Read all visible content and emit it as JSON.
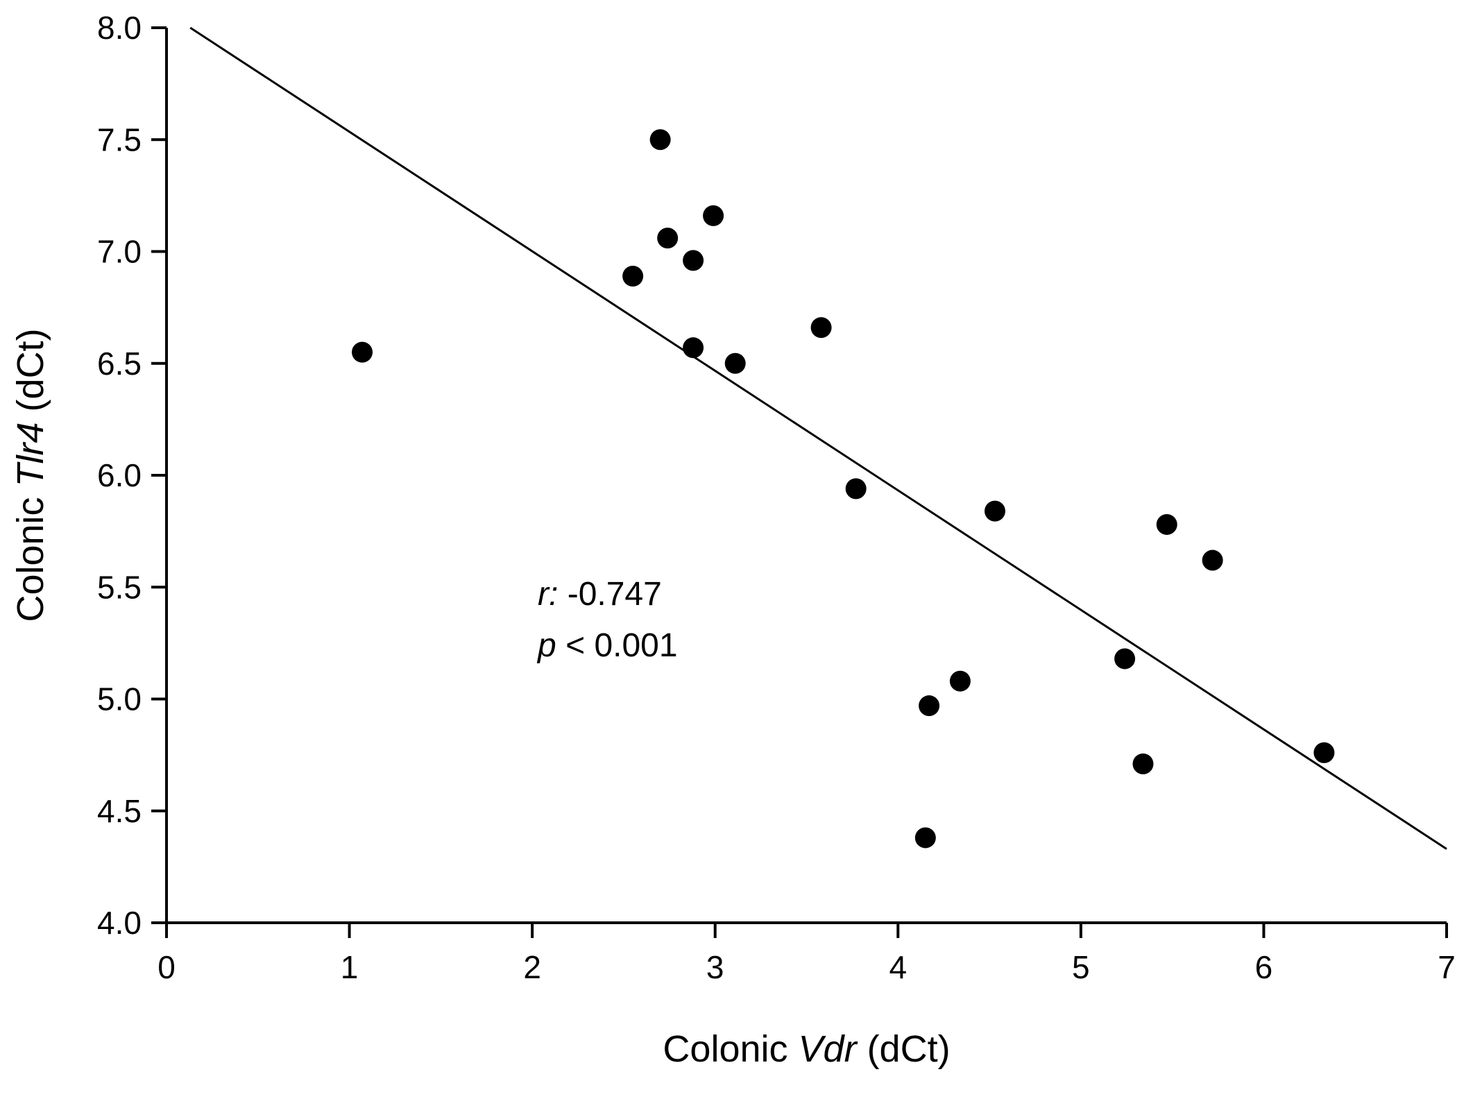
{
  "chart_data": {
    "type": "scatter",
    "title": "",
    "xlabel_parts": [
      {
        "t": "Colonic ",
        "i": false
      },
      {
        "t": "Vdr",
        "i": true
      },
      {
        "t": " (dCt)",
        "i": false
      }
    ],
    "ylabel_parts": [
      {
        "t": "Colonic ",
        "i": false
      },
      {
        "t": "Tlr4",
        "i": true
      },
      {
        "t": " (dCt)",
        "i": false
      }
    ],
    "xlim": [
      0,
      7
    ],
    "ylim": [
      4.0,
      8.0
    ],
    "xticks": [
      {
        "v": 0,
        "label": "0"
      },
      {
        "v": 1,
        "label": "1"
      },
      {
        "v": 2,
        "label": "2"
      },
      {
        "v": 3,
        "label": "3"
      },
      {
        "v": 4,
        "label": "4"
      },
      {
        "v": 5,
        "label": "5"
      },
      {
        "v": 6,
        "label": "6"
      },
      {
        "v": 7,
        "label": "7"
      }
    ],
    "yticks": [
      {
        "v": 4.0,
        "label": "4.0"
      },
      {
        "v": 4.5,
        "label": "4.5"
      },
      {
        "v": 5.0,
        "label": "5.0"
      },
      {
        "v": 5.5,
        "label": "5.5"
      },
      {
        "v": 6.0,
        "label": "6.0"
      },
      {
        "v": 6.5,
        "label": "6.5"
      },
      {
        "v": 7.0,
        "label": "7.0"
      },
      {
        "v": 7.5,
        "label": "7.5"
      },
      {
        "v": 8.0,
        "label": "8.0"
      }
    ],
    "points": [
      [
        1.07,
        6.55
      ],
      [
        2.55,
        6.89
      ],
      [
        2.7,
        7.5
      ],
      [
        2.74,
        7.06
      ],
      [
        2.88,
        6.96
      ],
      [
        2.99,
        7.16
      ],
      [
        2.88,
        6.57
      ],
      [
        3.11,
        6.5
      ],
      [
        3.58,
        6.66
      ],
      [
        3.77,
        5.94
      ],
      [
        4.53,
        5.84
      ],
      [
        4.17,
        4.97
      ],
      [
        4.34,
        5.08
      ],
      [
        4.15,
        4.38
      ],
      [
        5.24,
        5.18
      ],
      [
        5.34,
        4.71
      ],
      [
        5.47,
        5.78
      ],
      [
        5.72,
        5.62
      ],
      [
        6.33,
        4.76
      ]
    ],
    "trendline": {
      "x1": 0.13,
      "y1": 8.0,
      "x2": 7.0,
      "y2": 4.33
    },
    "annotation": {
      "x": 2.03,
      "lines": [
        {
          "y": 5.42,
          "parts": [
            {
              "t": "r:",
              "i": true
            },
            {
              "t": " -0.747",
              "i": false
            }
          ]
        },
        {
          "y": 5.19,
          "parts": [
            {
              "t": "p",
              "i": true
            },
            {
              "t": " < 0.001",
              "i": false
            }
          ]
        }
      ]
    },
    "marker_color": "#000000",
    "marker_radius": 15,
    "line_color": "#000000",
    "axis_color": "#000000",
    "background": "#ffffff",
    "legend": "none",
    "grid": false
  },
  "layout_text": {
    "note": ""
  }
}
